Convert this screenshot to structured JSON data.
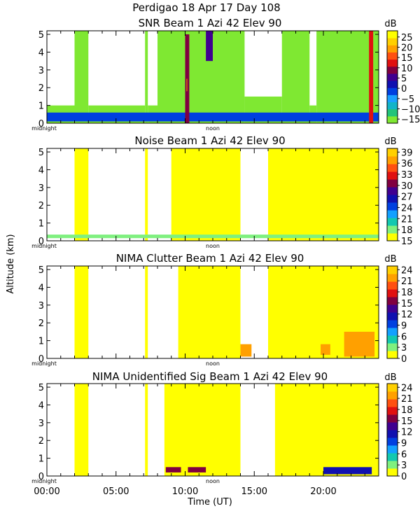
{
  "header": {
    "title": "Perdigao   18 Apr 17 Day 108"
  },
  "x_axis": {
    "label": "Time (UT)",
    "tick_labels": [
      "00:00",
      "05:00",
      "10:00",
      "15:00",
      "20:00"
    ],
    "tick_hours": [
      0,
      5,
      10,
      15,
      20
    ],
    "range_hours": [
      0,
      24
    ],
    "inline_labels": [
      "midnight",
      "noon"
    ]
  },
  "y_axis": {
    "label": "Altitude (km)",
    "tick_labels": [
      "0",
      "1",
      "2",
      "3",
      "4",
      "5"
    ],
    "range_km": [
      0,
      5.2
    ]
  },
  "palette": {
    "snr": [
      "#7fe832",
      "#22c47a",
      "#12b4c8",
      "#1aa0ff",
      "#0040e0",
      "#1010b0",
      "#400090",
      "#800040",
      "#e01010",
      "#ff5010",
      "#ffa000",
      "#ffd000",
      "#ffff00"
    ],
    "levels11": [
      "#ffff00",
      "#7ff07f",
      "#12c8b0",
      "#12a0ff",
      "#0040e0",
      "#1010b0",
      "#400090",
      "#800040",
      "#e01010",
      "#ff5010",
      "#ffa000",
      "#ffd000"
    ]
  },
  "panels": [
    {
      "title": "SNR Beam 1 Azi  42 Elev 90",
      "unit": "dB",
      "colorbar_labels": [
        "25",
        "20",
        "15",
        "10",
        "5",
        "0",
        "−5",
        "−10",
        "−15"
      ],
      "colorbar_range": [
        -17,
        28
      ],
      "background_color": "#7fe832"
    },
    {
      "title": "Noise Beam 1 Azi  42 Elev 90",
      "unit": "dB",
      "colorbar_labels": [
        "39",
        "36",
        "33",
        "30",
        "27",
        "24",
        "21",
        "18",
        "15"
      ],
      "colorbar_range": [
        15,
        40
      ],
      "background_color": "#ffff00"
    },
    {
      "title": "NIMA Clutter Beam 1 Azi  42 Elev 90",
      "unit": "dB",
      "colorbar_labels": [
        "24",
        "21",
        "18",
        "15",
        "12",
        "9",
        "6",
        "3",
        "0"
      ],
      "colorbar_range": [
        0,
        25
      ],
      "background_color": "#ffff00"
    },
    {
      "title": "NIMA Unidentified Sig Beam 1 Azi  42 Elev 90",
      "unit": "dB",
      "colorbar_labels": [
        "24",
        "21",
        "18",
        "15",
        "12",
        "9",
        "6",
        "3",
        "0"
      ],
      "colorbar_range": [
        0,
        25
      ],
      "background_color": "#ffff00"
    }
  ],
  "chart_data": {
    "type": "heatmap",
    "title": "Perdigao   18 Apr 17 Day 108",
    "xlabel": "Time (UT)",
    "ylabel": "Altitude (km)",
    "xlim_hours": [
      0,
      24
    ],
    "ylim_km": [
      0,
      5.2
    ],
    "panels": [
      {
        "name": "SNR",
        "units": "dB",
        "coverage_columns": [
          {
            "start": 0.0,
            "end": 2.0,
            "top": 1.0
          },
          {
            "start": 2.0,
            "end": 3.0,
            "top": 5.2
          },
          {
            "start": 3.0,
            "end": 7.1,
            "top": 1.0
          },
          {
            "start": 7.1,
            "end": 7.3,
            "top": 5.2
          },
          {
            "start": 7.3,
            "end": 8.0,
            "top": 1.0
          },
          {
            "start": 8.0,
            "end": 14.3,
            "top": 5.2
          },
          {
            "start": 14.3,
            "end": 17.0,
            "top": 1.5
          },
          {
            "start": 17.0,
            "end": 19.0,
            "top": 5.2
          },
          {
            "start": 19.0,
            "end": 19.5,
            "top": 1.0
          },
          {
            "start": 19.5,
            "end": 24.0,
            "top": 5.2
          }
        ],
        "features": [
          {
            "start": 0.0,
            "end": 24.0,
            "alt_low": 0.1,
            "alt_high": 0.6,
            "value_db": -3
          },
          {
            "start": 10.0,
            "end": 10.3,
            "alt_low": 0.0,
            "alt_high": 5.0,
            "value_db": 10
          },
          {
            "start": 10.1,
            "end": 10.15,
            "alt_low": 1.8,
            "alt_high": 2.5,
            "value_db": 18
          },
          {
            "start": 11.5,
            "end": 12.0,
            "alt_low": 3.5,
            "alt_high": 5.2,
            "value_db": 5
          },
          {
            "start": 23.3,
            "end": 23.6,
            "alt_low": 0.0,
            "alt_high": 5.2,
            "value_db": 12
          }
        ]
      },
      {
        "name": "Noise",
        "units": "dB",
        "coverage_columns": [
          {
            "start": 2.0,
            "end": 3.0,
            "top": 5.2
          },
          {
            "start": 7.1,
            "end": 7.3,
            "top": 5.2
          },
          {
            "start": 9.0,
            "end": 14.0,
            "top": 5.2
          },
          {
            "start": 16.0,
            "end": 24.0,
            "top": 5.2
          }
        ],
        "features": [
          {
            "start": 0.0,
            "end": 24.0,
            "alt_low": 0.15,
            "alt_high": 0.35,
            "value_db": 18
          }
        ]
      },
      {
        "name": "NIMA Clutter",
        "units": "dB",
        "coverage_columns": [
          {
            "start": 2.0,
            "end": 3.0,
            "top": 5.2
          },
          {
            "start": 7.1,
            "end": 7.3,
            "top": 5.2
          },
          {
            "start": 9.5,
            "end": 14.0,
            "top": 5.2
          },
          {
            "start": 16.0,
            "end": 24.0,
            "top": 5.2
          }
        ],
        "features": [
          {
            "start": 14.0,
            "end": 14.8,
            "alt_low": 0.1,
            "alt_high": 0.8,
            "value_db": 21
          },
          {
            "start": 19.8,
            "end": 20.5,
            "alt_low": 0.2,
            "alt_high": 0.8,
            "value_db": 21
          },
          {
            "start": 21.5,
            "end": 23.7,
            "alt_low": 0.1,
            "alt_high": 1.5,
            "value_db": 21
          }
        ]
      },
      {
        "name": "NIMA Unidentified Sig",
        "units": "dB",
        "coverage_columns": [
          {
            "start": 2.0,
            "end": 3.0,
            "top": 5.2
          },
          {
            "start": 7.1,
            "end": 7.3,
            "top": 5.2
          },
          {
            "start": 8.5,
            "end": 14.0,
            "top": 5.2
          },
          {
            "start": 16.5,
            "end": 24.0,
            "top": 5.2
          }
        ],
        "features": [
          {
            "start": 8.6,
            "end": 9.7,
            "alt_low": 0.2,
            "alt_high": 0.5,
            "value_db": 15
          },
          {
            "start": 10.2,
            "end": 11.5,
            "alt_low": 0.2,
            "alt_high": 0.5,
            "value_db": 15
          },
          {
            "start": 20.0,
            "end": 23.5,
            "alt_low": 0.1,
            "alt_high": 0.5,
            "value_db": 12
          }
        ]
      }
    ]
  }
}
